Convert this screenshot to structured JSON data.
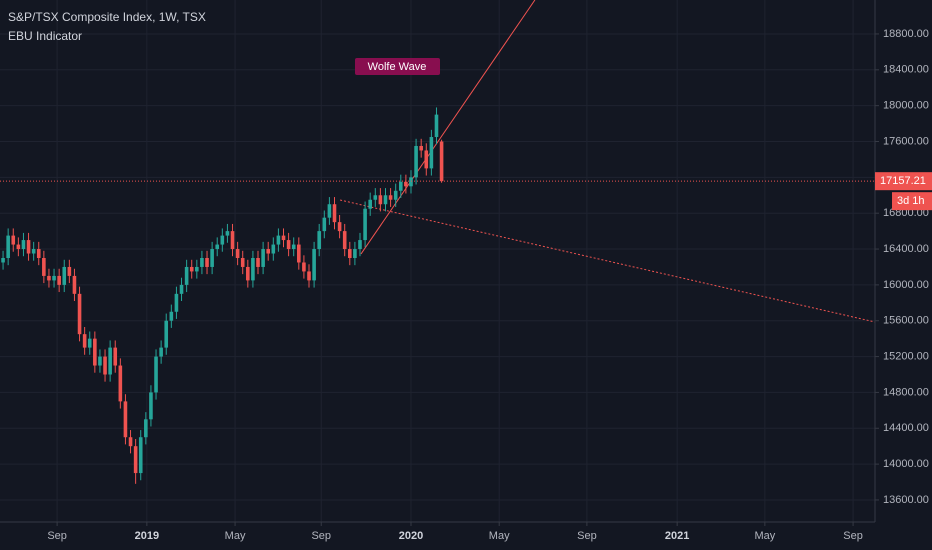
{
  "chart_data": {
    "type": "candlestick",
    "title": "S&P/TSX Composite Index, 1W, TSX",
    "subtitle": "EBU Indicator",
    "up_color": "#26a69a",
    "down_color": "#ef5350",
    "grid": true,
    "x": [
      0,
      1,
      2,
      3,
      4,
      5,
      6,
      7,
      8,
      9,
      10,
      11,
      12,
      13,
      14,
      15,
      16,
      17,
      18,
      19,
      20,
      21,
      22,
      23,
      24,
      25,
      26,
      27,
      28,
      29,
      30,
      31,
      32,
      33,
      34,
      35,
      36,
      37,
      38,
      39,
      40,
      41,
      42,
      43,
      44,
      45,
      46,
      47,
      48,
      49,
      50,
      51,
      52,
      53,
      54,
      55,
      56,
      57,
      58,
      59,
      60,
      61,
      62,
      63,
      64,
      65,
      66,
      67,
      68,
      69,
      70,
      71,
      72,
      73,
      74,
      75,
      76,
      77,
      78,
      79,
      80,
      81,
      82,
      83,
      84,
      85,
      86
    ],
    "open": [
      16250,
      16300,
      16550,
      16450,
      16400,
      16500,
      16350,
      16400,
      16300,
      16100,
      16050,
      16100,
      16000,
      16200,
      16100,
      15900,
      15450,
      15300,
      15400,
      15100,
      15200,
      15000,
      15300,
      15100,
      14700,
      14300,
      14200,
      13900,
      14300,
      14500,
      14800,
      15200,
      15300,
      15600,
      15700,
      15900,
      16000,
      16200,
      16150,
      16200,
      16300,
      16200,
      16400,
      16450,
      16550,
      16600,
      16400,
      16300,
      16200,
      16050,
      16300,
      16200,
      16400,
      16350,
      16450,
      16550,
      16500,
      16400,
      16450,
      16250,
      16150,
      16050,
      16400,
      16600,
      16750,
      16900,
      16700,
      16600,
      16400,
      16300,
      16400,
      16500,
      16850,
      16950,
      17000,
      16900,
      17000,
      16950,
      17050,
      17150,
      17100,
      17200,
      17550,
      17500,
      17300,
      17650,
      17600
    ],
    "high": [
      16380,
      16630,
      16630,
      16530,
      16580,
      16580,
      16480,
      16480,
      16380,
      16180,
      16180,
      16180,
      16280,
      16280,
      16180,
      15980,
      15530,
      15480,
      15480,
      15280,
      15280,
      15380,
      15380,
      15180,
      14780,
      14380,
      14280,
      14380,
      14580,
      14880,
      15280,
      15380,
      15680,
      15780,
      15980,
      16080,
      16280,
      16280,
      16280,
      16380,
      16380,
      16480,
      16530,
      16630,
      16680,
      16680,
      16480,
      16380,
      16280,
      16380,
      16380,
      16480,
      16480,
      16530,
      16630,
      16630,
      16580,
      16530,
      16530,
      16330,
      16230,
      16480,
      16680,
      16830,
      16980,
      16980,
      16780,
      16680,
      16480,
      16480,
      16580,
      16930,
      17030,
      17080,
      17080,
      17080,
      17080,
      17130,
      17230,
      17230,
      17280,
      17630,
      17630,
      17580,
      17730,
      17980,
      17620
    ],
    "low": [
      16170,
      16220,
      16370,
      16320,
      16320,
      16270,
      16270,
      16220,
      16020,
      15970,
      15970,
      15920,
      15920,
      16020,
      15820,
      15370,
      15220,
      15220,
      15020,
      15020,
      14920,
      14920,
      15020,
      14620,
      14220,
      14120,
      13780,
      13820,
      14220,
      14420,
      14720,
      15120,
      15220,
      15520,
      15620,
      15820,
      15920,
      16070,
      16070,
      16120,
      16120,
      16120,
      16320,
      16370,
      16470,
      16320,
      16220,
      16120,
      15970,
      15970,
      16120,
      16120,
      16270,
      16270,
      16370,
      16420,
      16320,
      16320,
      16170,
      16070,
      15970,
      15970,
      16320,
      16520,
      16670,
      16620,
      16520,
      16320,
      16220,
      16220,
      16320,
      16420,
      16770,
      16870,
      16820,
      16820,
      16870,
      16870,
      16970,
      17020,
      17020,
      17120,
      17420,
      17220,
      17220,
      17570,
      17140
    ],
    "close": [
      16300,
      16550,
      16450,
      16400,
      16500,
      16350,
      16400,
      16300,
      16100,
      16050,
      16100,
      16000,
      16200,
      16100,
      15900,
      15450,
      15300,
      15400,
      15100,
      15200,
      15000,
      15300,
      15100,
      14700,
      14300,
      14200,
      13900,
      14300,
      14500,
      14800,
      15200,
      15300,
      15600,
      15700,
      15900,
      16000,
      16200,
      16150,
      16200,
      16300,
      16200,
      16400,
      16450,
      16550,
      16600,
      16400,
      16300,
      16200,
      16050,
      16300,
      16200,
      16400,
      16350,
      16450,
      16550,
      16500,
      16400,
      16450,
      16250,
      16150,
      16050,
      16400,
      16600,
      16750,
      16900,
      16700,
      16600,
      16400,
      16300,
      16400,
      16500,
      16850,
      16950,
      17000,
      16900,
      17000,
      16950,
      17050,
      17150,
      17100,
      17200,
      17550,
      17500,
      17300,
      17650,
      17900,
      17157.21
    ],
    "xlim": [
      -0.6,
      171
    ],
    "ylim": [
      13354,
      19179
    ],
    "xticks": [
      {
        "value": 10.6,
        "label": "Sep"
      },
      {
        "value": 28.2,
        "label": "2019"
      },
      {
        "value": 45.5,
        "label": "May"
      },
      {
        "value": 62.4,
        "label": "Sep"
      },
      {
        "value": 80,
        "label": "2020"
      },
      {
        "value": 97.3,
        "label": "May"
      },
      {
        "value": 114.5,
        "label": "Sep"
      },
      {
        "value": 132.2,
        "label": "2021"
      },
      {
        "value": 149.4,
        "label": "May"
      },
      {
        "value": 166.7,
        "label": "Sep"
      }
    ],
    "yticks": [
      {
        "value": 13600,
        "label": "13600.00"
      },
      {
        "value": 14000,
        "label": "14000.00"
      },
      {
        "value": 14400,
        "label": "14400.00"
      },
      {
        "value": 14800,
        "label": "14800.00"
      },
      {
        "value": 15200,
        "label": "15200.00"
      },
      {
        "value": 15600,
        "label": "15600.00"
      },
      {
        "value": 16000,
        "label": "16000.00"
      },
      {
        "value": 16400,
        "label": "16400.00"
      },
      {
        "value": 16800,
        "label": "16800.00"
      },
      {
        "value": 17200,
        "label": "17200.00"
      },
      {
        "value": 17600,
        "label": "17600.00"
      },
      {
        "value": 18000,
        "label": "18000.00"
      },
      {
        "value": 18400,
        "label": "18400.00"
      },
      {
        "value": 18800,
        "label": "18800.00"
      }
    ],
    "last_price": 17157.21,
    "countdown": "3d 1h",
    "annotation": "Wolfe Wave",
    "trend_lines": [
      {
        "x": [
          70.2,
          104.3
        ],
        "y": [
          16345,
          19179
        ],
        "color": "#ef5350",
        "style": "solid"
      },
      {
        "x": [
          66.1,
          171
        ],
        "y": [
          16947,
          15586
        ],
        "color": "#ef5350",
        "style": "dotted"
      }
    ]
  }
}
